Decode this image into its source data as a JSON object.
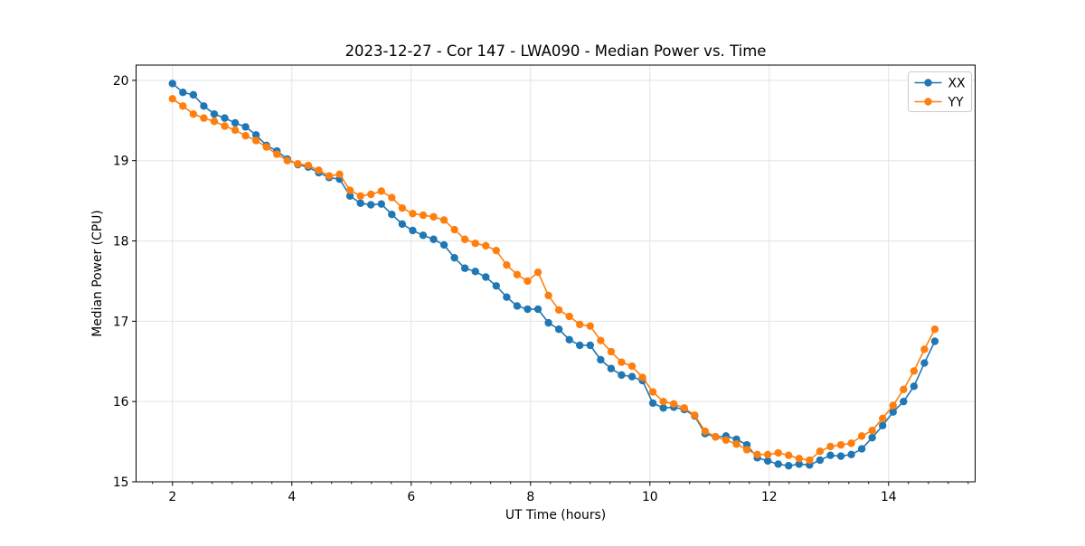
{
  "chart_data": {
    "type": "line",
    "title": "2023-12-27 - Cor 147 - LWA090 - Median Power vs. Time",
    "xlabel": "UT Time (hours)",
    "ylabel": "Median Power (CPU)",
    "xlim": [
      1.39,
      15.45
    ],
    "ylim": [
      15.0,
      20.19
    ],
    "x_major_ticks": [
      2,
      4,
      6,
      8,
      10,
      12,
      14
    ],
    "x_minor_tick_step": 0.33333,
    "y_major_ticks": [
      15,
      16,
      17,
      18,
      19,
      20
    ],
    "grid": true,
    "grid_color": "#e3e3e3",
    "spine_color": "#000000",
    "legend": {
      "position": "upper right",
      "entries": [
        "XX",
        "YY"
      ]
    },
    "marker": "circle",
    "marker_radius": 4.2,
    "line_width": 1.6,
    "x": [
      2.0,
      2.175,
      2.35,
      2.525,
      2.7,
      2.875,
      3.05,
      3.225,
      3.4,
      3.575,
      3.75,
      3.925,
      4.1,
      4.275,
      4.45,
      4.625,
      4.8,
      4.975,
      5.15,
      5.325,
      5.5,
      5.675,
      5.85,
      6.025,
      6.2,
      6.375,
      6.55,
      6.725,
      6.9,
      7.075,
      7.25,
      7.425,
      7.6,
      7.775,
      7.95,
      8.125,
      8.3,
      8.475,
      8.65,
      8.825,
      9.0,
      9.175,
      9.35,
      9.525,
      9.7,
      9.875,
      10.05,
      10.225,
      10.4,
      10.575,
      10.75,
      10.925,
      11.1,
      11.275,
      11.45,
      11.625,
      11.8,
      11.975,
      12.15,
      12.325,
      12.5,
      12.675,
      12.85,
      13.025,
      13.2,
      13.375,
      13.55,
      13.725,
      13.9,
      14.075,
      14.25,
      14.425,
      14.6,
      14.775
    ],
    "series": [
      {
        "name": "XX",
        "color": "#1f77b4",
        "values": [
          19.96,
          19.85,
          19.82,
          19.68,
          19.58,
          19.53,
          19.47,
          19.42,
          19.32,
          19.19,
          19.12,
          19.02,
          18.95,
          18.92,
          18.85,
          18.79,
          18.77,
          18.56,
          18.47,
          18.45,
          18.46,
          18.33,
          18.21,
          18.13,
          18.07,
          18.02,
          17.95,
          17.79,
          17.66,
          17.62,
          17.55,
          17.44,
          17.3,
          17.19,
          17.15,
          17.15,
          16.98,
          16.9,
          16.77,
          16.7,
          16.7,
          16.52,
          16.41,
          16.33,
          16.31,
          16.26,
          15.98,
          15.92,
          15.93,
          15.9,
          15.82,
          15.6,
          15.56,
          15.57,
          15.53,
          15.46,
          15.3,
          15.26,
          15.22,
          15.2,
          15.22,
          15.21,
          15.27,
          15.33,
          15.32,
          15.34,
          15.41,
          15.55,
          15.7,
          15.87,
          16.0,
          16.19,
          16.48,
          16.75
        ]
      },
      {
        "name": "YY",
        "color": "#ff7f0e",
        "values": [
          19.77,
          19.68,
          19.58,
          19.53,
          19.49,
          19.43,
          19.38,
          19.31,
          19.25,
          19.17,
          19.08,
          19.0,
          18.96,
          18.94,
          18.88,
          18.81,
          18.83,
          18.63,
          18.56,
          18.58,
          18.62,
          18.54,
          18.41,
          18.34,
          18.32,
          18.3,
          18.26,
          18.14,
          18.02,
          17.97,
          17.94,
          17.88,
          17.7,
          17.58,
          17.5,
          17.61,
          17.32,
          17.14,
          17.06,
          16.96,
          16.94,
          16.76,
          16.62,
          16.49,
          16.44,
          16.3,
          16.12,
          16.0,
          15.97,
          15.92,
          15.83,
          15.63,
          15.56,
          15.52,
          15.47,
          15.4,
          15.34,
          15.34,
          15.36,
          15.33,
          15.29,
          15.27,
          15.38,
          15.44,
          15.46,
          15.48,
          15.57,
          15.64,
          15.79,
          15.95,
          16.15,
          16.38,
          16.65,
          16.9
        ]
      }
    ]
  }
}
